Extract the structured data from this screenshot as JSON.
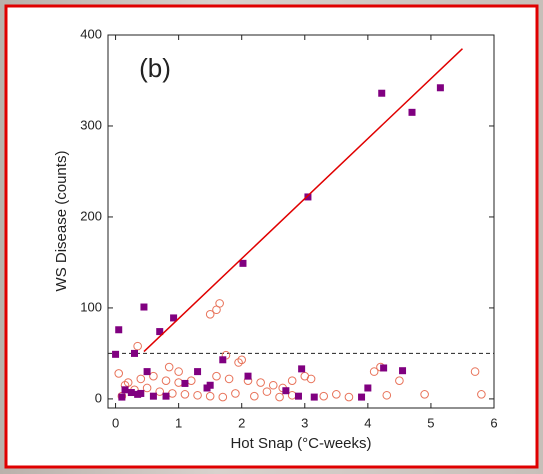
{
  "chart_data": {
    "type": "scatter",
    "panel_label": "(b)",
    "xlabel": "Hot Snap (°C-weeks)",
    "ylabel": "WS Disease (counts)",
    "xlim": [
      -0.12,
      6
    ],
    "ylim": [
      -10,
      400
    ],
    "xticks": [
      0,
      1,
      2,
      3,
      4,
      5,
      6
    ],
    "yticks": [
      0,
      100,
      200,
      300,
      400
    ],
    "series": [
      {
        "color": "#e8735a",
        "marker": "open-circle",
        "x": [
          1.65,
          1.5,
          1.6,
          0.35,
          0.85,
          1.75,
          2.0,
          1.95,
          5.7,
          5.8,
          4.5,
          4.1,
          4.2,
          3.1,
          3.0,
          2.8,
          2.5,
          2.3,
          2.1,
          1.8,
          1.6,
          1.2,
          1.0,
          0.8,
          0.6,
          0.4,
          0.2,
          0.3,
          0.5,
          0.7,
          0.9,
          1.1,
          1.3,
          1.5,
          1.7,
          1.9,
          2.2,
          2.4,
          2.6,
          2.8,
          3.3,
          3.5,
          3.7,
          4.3,
          4.9,
          0.1,
          0.15,
          0.05,
          1.0,
          2.65
        ],
        "y": [
          105,
          93,
          98,
          58,
          35,
          48,
          43,
          40,
          30,
          5,
          20,
          30,
          35,
          22,
          25,
          20,
          15,
          18,
          20,
          22,
          25,
          20,
          18,
          20,
          25,
          22,
          18,
          10,
          12,
          8,
          6,
          5,
          4,
          3,
          2,
          6,
          3,
          8,
          2,
          4,
          3,
          5,
          2,
          4,
          5,
          3,
          15,
          28,
          30,
          12
        ]
      },
      {
        "color": "#800080",
        "marker": "square",
        "x": [
          5.15,
          4.22,
          4.7,
          3.05,
          2.02,
          0.45,
          0.92,
          0.7,
          0.05,
          0.0,
          0.3,
          1.7,
          2.95,
          4.25,
          4.55,
          0.5,
          1.3,
          2.1,
          1.1,
          1.45,
          1.5,
          0.25,
          0.35,
          0.6,
          0.8,
          3.15,
          2.7,
          3.9,
          4.0,
          0.1,
          0.15,
          0.4,
          2.9
        ],
        "y": [
          342,
          336,
          315,
          222,
          149,
          101,
          89,
          74,
          76,
          49,
          50,
          43,
          33,
          34,
          31,
          30,
          30,
          25,
          17,
          12,
          15,
          7,
          5,
          3,
          3,
          2,
          9,
          2,
          12,
          2,
          10,
          6,
          3
        ]
      }
    ],
    "fit_line": {
      "color": "#e00000",
      "x": [
        0.45,
        5.5
      ],
      "y": [
        52,
        385
      ]
    },
    "threshold": 50
  }
}
